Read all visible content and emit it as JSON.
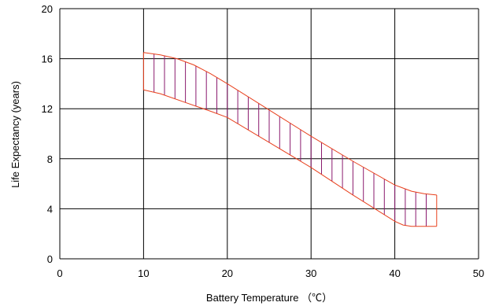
{
  "chart_data": {
    "type": "area",
    "xlabel": "Battery Temperature （℃）",
    "ylabel": "Life Expectancy (years)",
    "xlim": [
      0,
      50
    ],
    "ylim": [
      0,
      20
    ],
    "xticks": [
      "0",
      "10",
      "20",
      "30",
      "40",
      "50"
    ],
    "yticks": [
      "0",
      "4",
      "8",
      "12",
      "16",
      "20"
    ],
    "grid": true,
    "legend": "none",
    "series": [
      {
        "role": "upper",
        "x": [
          10,
          12,
          14,
          16,
          18,
          20,
          25,
          30,
          35,
          40,
          42,
          43.5,
          45
        ],
        "y": [
          16.5,
          16.3,
          16.0,
          15.5,
          14.8,
          14.0,
          11.9,
          9.8,
          7.8,
          5.9,
          5.4,
          5.2,
          5.1
        ]
      },
      {
        "role": "lower",
        "x": [
          10,
          12,
          15,
          18,
          20,
          25,
          30,
          35,
          40,
          41,
          42,
          45
        ],
        "y": [
          13.5,
          13.2,
          12.5,
          11.8,
          11.3,
          9.3,
          7.3,
          5.1,
          3.0,
          2.7,
          2.6,
          2.6
        ]
      }
    ],
    "colors": {
      "boundary": "#e8401c",
      "hatch": "#8a1a6e",
      "grid": "#000000"
    }
  }
}
